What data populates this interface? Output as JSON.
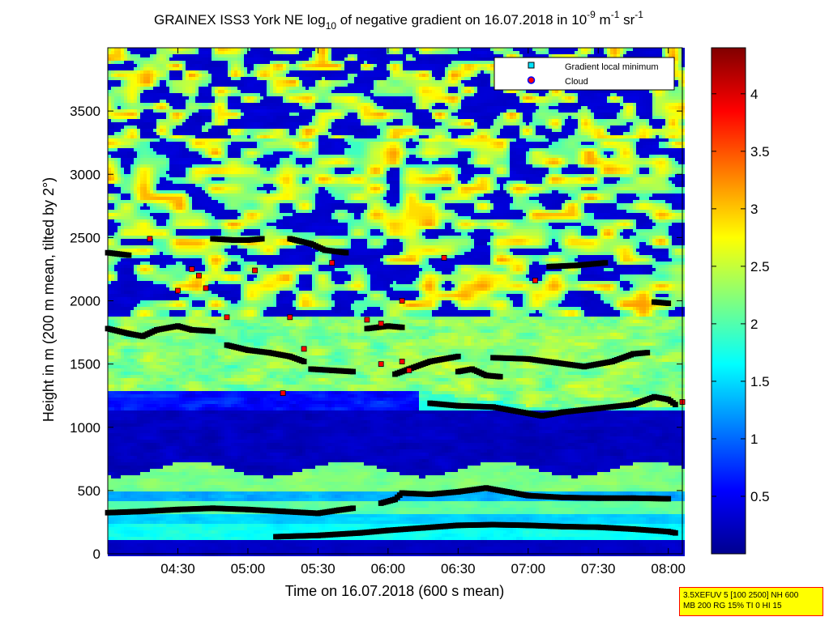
{
  "chart_data": {
    "type": "heatmap",
    "title": {
      "text_a": "GRAINEX ISS3 York NE log",
      "sub_a": "10",
      "text_b": " of negative gradient on 16.07.2018 in 10",
      "sup_b": "-9",
      "text_c": " m",
      "sup_c": "-1",
      "text_d": " sr",
      "sup_d": "-1"
    },
    "xlabel": "Time on 16.07.2018 (600 s mean)",
    "ylabel": "Height in m (200 m mean, tilted by 2°)",
    "x_range_hours": [
      4.0,
      8.1
    ],
    "ylim": [
      0,
      4000
    ],
    "x_ticks": [
      {
        "label": "04:30",
        "hour": 4.5
      },
      {
        "label": "05:00",
        "hour": 5.0
      },
      {
        "label": "05:30",
        "hour": 5.5
      },
      {
        "label": "06:00",
        "hour": 6.0
      },
      {
        "label": "06:30",
        "hour": 6.5
      },
      {
        "label": "07:00",
        "hour": 7.0
      },
      {
        "label": "07:30",
        "hour": 7.5
      },
      {
        "label": "08:00",
        "hour": 8.0
      }
    ],
    "y_ticks": [
      0,
      500,
      1000,
      1500,
      2000,
      2500,
      3000,
      3500
    ],
    "colorbar": {
      "min": 0,
      "max": 4.4,
      "ticks": [
        "0.5",
        "1",
        "1.5",
        "2",
        "2.5",
        "3",
        "3.5",
        "4"
      ],
      "colormap": "jet"
    },
    "legend": {
      "position": "top-right",
      "entries": [
        {
          "label": "Gradient local minimum",
          "marker": "square",
          "color": "#00e5ff"
        },
        {
          "label": "Cloud",
          "marker": "circle",
          "color": "#ff0000",
          "edge": "#0000ff"
        }
      ]
    },
    "series": [
      {
        "kind": "minimum",
        "color": "#000000",
        "points": [
          [
            4.0,
            325
          ],
          [
            4.25,
            335
          ],
          [
            4.5,
            350
          ],
          [
            4.75,
            360
          ],
          [
            5.0,
            350
          ],
          [
            5.25,
            335
          ],
          [
            5.5,
            320
          ],
          [
            5.65,
            345
          ],
          [
            5.75,
            360
          ]
        ]
      },
      {
        "kind": "minimum",
        "color": "#000000",
        "points": [
          [
            5.2,
            135
          ],
          [
            5.5,
            145
          ],
          [
            5.8,
            165
          ],
          [
            6.0,
            185
          ],
          [
            6.25,
            205
          ],
          [
            6.5,
            225
          ],
          [
            6.75,
            230
          ],
          [
            7.0,
            225
          ],
          [
            7.25,
            215
          ],
          [
            7.5,
            210
          ],
          [
            7.75,
            195
          ],
          [
            8.0,
            175
          ],
          [
            8.05,
            165
          ]
        ]
      },
      {
        "kind": "minimum",
        "color": "#000000",
        "points": [
          [
            5.95,
            400
          ],
          [
            6.05,
            430
          ],
          [
            6.1,
            480
          ],
          [
            6.3,
            470
          ],
          [
            6.5,
            490
          ],
          [
            6.7,
            520
          ],
          [
            6.85,
            490
          ],
          [
            7.0,
            460
          ],
          [
            7.25,
            445
          ],
          [
            7.5,
            440
          ],
          [
            7.75,
            440
          ],
          [
            8.0,
            435
          ]
        ]
      },
      {
        "kind": "minimum",
        "color": "#000000",
        "points": [
          [
            6.3,
            1190
          ],
          [
            6.5,
            1170
          ],
          [
            6.75,
            1160
          ],
          [
            7.0,
            1110
          ],
          [
            7.1,
            1090
          ],
          [
            7.25,
            1120
          ],
          [
            7.5,
            1150
          ],
          [
            7.75,
            1180
          ],
          [
            7.9,
            1240
          ],
          [
            8.0,
            1220
          ],
          [
            8.05,
            1180
          ]
        ]
      },
      {
        "kind": "minimum",
        "color": "#000000",
        "points": [
          [
            4.0,
            1780
          ],
          [
            4.15,
            1740
          ],
          [
            4.25,
            1720
          ],
          [
            4.35,
            1770
          ],
          [
            4.5,
            1800
          ],
          [
            4.6,
            1770
          ],
          [
            4.75,
            1760
          ]
        ]
      },
      {
        "kind": "minimum",
        "color": "#000000",
        "points": [
          [
            4.85,
            1650
          ],
          [
            5.0,
            1610
          ],
          [
            5.15,
            1590
          ],
          [
            5.3,
            1560
          ],
          [
            5.4,
            1520
          ]
        ]
      },
      {
        "kind": "minimum",
        "color": "#000000",
        "points": [
          [
            5.45,
            1460
          ],
          [
            5.6,
            1450
          ],
          [
            5.75,
            1440
          ]
        ]
      },
      {
        "kind": "minimum",
        "color": "#000000",
        "points": [
          [
            6.05,
            1420
          ],
          [
            6.15,
            1460
          ],
          [
            6.3,
            1520
          ],
          [
            6.45,
            1550
          ],
          [
            6.5,
            1560
          ]
        ]
      },
      {
        "kind": "minimum",
        "color": "#000000",
        "points": [
          [
            6.75,
            1550
          ],
          [
            7.0,
            1540
          ],
          [
            7.2,
            1510
          ],
          [
            7.4,
            1480
          ],
          [
            7.6,
            1520
          ],
          [
            7.75,
            1580
          ],
          [
            7.85,
            1590
          ]
        ]
      },
      {
        "kind": "minimum",
        "color": "#000000",
        "points": [
          [
            4.0,
            2380
          ],
          [
            4.15,
            2360
          ]
        ]
      },
      {
        "kind": "minimum",
        "color": "#000000",
        "points": [
          [
            4.75,
            2490
          ],
          [
            4.9,
            2480
          ],
          [
            5.0,
            2480
          ],
          [
            5.1,
            2490
          ]
        ]
      },
      {
        "kind": "minimum",
        "color": "#000000",
        "points": [
          [
            5.3,
            2490
          ],
          [
            5.45,
            2450
          ],
          [
            5.55,
            2400
          ],
          [
            5.7,
            2380
          ]
        ]
      },
      {
        "kind": "minimum",
        "color": "#000000",
        "points": [
          [
            7.15,
            2270
          ],
          [
            7.35,
            2280
          ],
          [
            7.55,
            2300
          ]
        ]
      },
      {
        "kind": "minimum",
        "color": "#000000",
        "points": [
          [
            7.9,
            1990
          ],
          [
            8.0,
            1980
          ]
        ]
      },
      {
        "kind": "minimum",
        "color": "#000000",
        "points": [
          [
            5.85,
            1780
          ],
          [
            6.0,
            1800
          ],
          [
            6.1,
            1790
          ]
        ]
      },
      {
        "kind": "minimum",
        "color": "#000000",
        "points": [
          [
            6.5,
            1440
          ],
          [
            6.6,
            1460
          ],
          [
            6.7,
            1410
          ],
          [
            6.8,
            1400
          ]
        ]
      }
    ],
    "clouds": [
      [
        4.3,
        2490
      ],
      [
        4.5,
        2080
      ],
      [
        4.6,
        2250
      ],
      [
        4.65,
        2200
      ],
      [
        4.7,
        2100
      ],
      [
        4.85,
        1870
      ],
      [
        5.05,
        2240
      ],
      [
        5.3,
        1870
      ],
      [
        5.4,
        1620
      ],
      [
        5.85,
        1850
      ],
      [
        5.95,
        1820
      ],
      [
        6.1,
        1520
      ],
      [
        6.15,
        1450
      ],
      [
        5.95,
        1500
      ],
      [
        6.4,
        2340
      ],
      [
        7.05,
        2160
      ],
      [
        8.1,
        1200
      ],
      [
        5.25,
        1270
      ],
      [
        5.6,
        2300
      ],
      [
        6.1,
        2000
      ]
    ]
  },
  "info_box": {
    "line1": "3.5XEFUV 5 [100 2500] NH 600",
    "line2": "MB 200 RG 15% TI 0 HI 15"
  }
}
